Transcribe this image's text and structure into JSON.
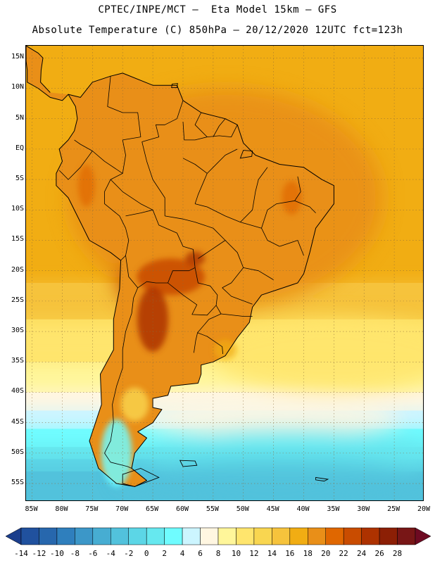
{
  "titles": {
    "line1": "CPTEC/INPE/MCT –  Eta Model 15km – GFS",
    "line2": "Absolute Temperature (C) 850hPa – 20/12/2020 12UTC fct=123h"
  },
  "map": {
    "lon_range": [
      -86,
      -20
    ],
    "lat_range": [
      -58,
      17
    ],
    "lat_ticks": [
      {
        "v": 15,
        "label": "15N"
      },
      {
        "v": 10,
        "label": "10N"
      },
      {
        "v": 5,
        "label": "5N"
      },
      {
        "v": 0,
        "label": "EQ"
      },
      {
        "v": -5,
        "label": "5S"
      },
      {
        "v": -10,
        "label": "10S"
      },
      {
        "v": -15,
        "label": "15S"
      },
      {
        "v": -20,
        "label": "20S"
      },
      {
        "v": -25,
        "label": "25S"
      },
      {
        "v": -30,
        "label": "30S"
      },
      {
        "v": -35,
        "label": "35S"
      },
      {
        "v": -40,
        "label": "40S"
      },
      {
        "v": -45,
        "label": "45S"
      },
      {
        "v": -50,
        "label": "50S"
      },
      {
        "v": -55,
        "label": "55S"
      }
    ],
    "lon_ticks": [
      {
        "v": -85,
        "label": "85W"
      },
      {
        "v": -80,
        "label": "80W"
      },
      {
        "v": -75,
        "label": "75W"
      },
      {
        "v": -70,
        "label": "70W"
      },
      {
        "v": -65,
        "label": "65W"
      },
      {
        "v": -60,
        "label": "60W"
      },
      {
        "v": -55,
        "label": "55W"
      },
      {
        "v": -50,
        "label": "50W"
      },
      {
        "v": -45,
        "label": "45W"
      },
      {
        "v": -40,
        "label": "40W"
      },
      {
        "v": -35,
        "label": "35W"
      },
      {
        "v": -30,
        "label": "30W"
      },
      {
        "v": -25,
        "label": "25W"
      },
      {
        "v": -20,
        "label": "20W"
      }
    ],
    "gridlines": "dotted",
    "continent_outline": [
      [
        -79,
        9
      ],
      [
        -77,
        8.5
      ],
      [
        -75,
        11
      ],
      [
        -72,
        12
      ],
      [
        -70,
        12.5
      ],
      [
        -65,
        10.5
      ],
      [
        -61,
        10.5
      ],
      [
        -60,
        8
      ],
      [
        -57,
        6
      ],
      [
        -53,
        5
      ],
      [
        -51,
        4
      ],
      [
        -50,
        1
      ],
      [
        -48,
        -1
      ],
      [
        -44,
        -2.5
      ],
      [
        -40,
        -3
      ],
      [
        -37,
        -5
      ],
      [
        -35,
        -6
      ],
      [
        -35,
        -9
      ],
      [
        -38,
        -13
      ],
      [
        -39,
        -17
      ],
      [
        -40,
        -20.5
      ],
      [
        -41,
        -22
      ],
      [
        -44,
        -23
      ],
      [
        -47,
        -24
      ],
      [
        -48.5,
        -26
      ],
      [
        -49,
        -28.5
      ],
      [
        -51,
        -31
      ],
      [
        -53,
        -34
      ],
      [
        -55,
        -35
      ],
      [
        -57,
        -35.5
      ],
      [
        -57,
        -37
      ],
      [
        -57.5,
        -38.5
      ],
      [
        -62,
        -39
      ],
      [
        -62.5,
        -40.5
      ],
      [
        -65,
        -41
      ],
      [
        -65,
        -42.5
      ],
      [
        -63.5,
        -42.8
      ],
      [
        -65,
        -45
      ],
      [
        -67.5,
        -46.5
      ],
      [
        -66,
        -47.5
      ],
      [
        -68,
        -50
      ],
      [
        -68.5,
        -52.5
      ],
      [
        -66,
        -54.5
      ],
      [
        -68,
        -55.5
      ],
      [
        -71,
        -55
      ],
      [
        -74,
        -52.5
      ],
      [
        -75.5,
        -48
      ],
      [
        -74.5,
        -45
      ],
      [
        -73.5,
        -42
      ],
      [
        -73.7,
        -37
      ],
      [
        -71.5,
        -33
      ],
      [
        -71.5,
        -28
      ],
      [
        -70.5,
        -23
      ],
      [
        -70.3,
        -18.3
      ],
      [
        -72,
        -17
      ],
      [
        -75.5,
        -15
      ],
      [
        -77,
        -12
      ],
      [
        -79,
        -8
      ],
      [
        -81,
        -6
      ],
      [
        -81,
        -4
      ],
      [
        -80,
        -2
      ],
      [
        -80.5,
        0
      ],
      [
        -79,
        1.5
      ],
      [
        -78,
        3
      ],
      [
        -77.5,
        5
      ],
      [
        -77.8,
        7
      ]
    ],
    "central_america_outline": [
      [
        -79,
        9
      ],
      [
        -80,
        8
      ],
      [
        -82,
        8.5
      ],
      [
        -84,
        10
      ],
      [
        -85.8,
        11
      ],
      [
        -85.8,
        13
      ],
      [
        -86,
        14.5
      ],
      [
        -86,
        17
      ],
      [
        -84,
        15.8
      ],
      [
        -83.2,
        15
      ],
      [
        -83.5,
        13
      ],
      [
        -83.6,
        11
      ],
      [
        -82,
        9.3
      ]
    ],
    "border_lines": [
      [
        [
          -72,
          12
        ],
        [
          -72.5,
          7
        ],
        [
          -70,
          6
        ],
        [
          -67.5,
          6
        ],
        [
          -67,
          2
        ],
        [
          -70,
          1.5
        ],
        [
          -69.5,
          -1
        ],
        [
          -70,
          -4
        ],
        [
          -73,
          -2
        ],
        [
          -75,
          -0.3
        ],
        [
          -77,
          0.8
        ],
        [
          -78,
          1.5
        ]
      ],
      [
        [
          -60,
          8
        ],
        [
          -61,
          5
        ],
        [
          -63,
          4
        ],
        [
          -64.5,
          4
        ],
        [
          -64,
          2
        ],
        [
          -66.8,
          1.2
        ]
      ],
      [
        [
          -57,
          6
        ],
        [
          -58,
          4
        ],
        [
          -56,
          2
        ]
      ],
      [
        [
          -53,
          5
        ],
        [
          -54,
          3.8
        ],
        [
          -55,
          2
        ]
      ],
      [
        [
          -51,
          4
        ],
        [
          -52,
          2
        ],
        [
          -54,
          2.2
        ],
        [
          -56,
          2
        ],
        [
          -58,
          1.5
        ],
        [
          -59.8,
          1.5
        ],
        [
          -60,
          4.5
        ]
      ],
      [
        [
          -75,
          -0.3
        ],
        [
          -77,
          -3
        ],
        [
          -79,
          -5
        ],
        [
          -80.5,
          -3.5
        ]
      ],
      [
        [
          -70,
          -4
        ],
        [
          -72,
          -5
        ],
        [
          -73,
          -7
        ],
        [
          -73,
          -9
        ],
        [
          -70.5,
          -11
        ],
        [
          -69.5,
          -13
        ],
        [
          -69,
          -15
        ],
        [
          -69.5,
          -17.5
        ],
        [
          -70.3,
          -18.3
        ]
      ],
      [
        [
          -69.5,
          -11
        ],
        [
          -67,
          -10.5
        ],
        [
          -65,
          -10
        ],
        [
          -64,
          -12.5
        ],
        [
          -61,
          -13.8
        ],
        [
          -60,
          -16
        ],
        [
          -58.3,
          -16.5
        ],
        [
          -58,
          -19.5
        ],
        [
          -59,
          -20
        ],
        [
          -61.7,
          -20
        ],
        [
          -62.5,
          -22
        ],
        [
          -64.5,
          -22
        ],
        [
          -66,
          -21.8
        ],
        [
          -67.5,
          -22.8
        ],
        [
          -69,
          -21
        ],
        [
          -69.5,
          -17.5
        ]
      ],
      [
        [
          -58,
          -19.5
        ],
        [
          -57.5,
          -22
        ],
        [
          -55.5,
          -22.5
        ],
        [
          -54.3,
          -24
        ],
        [
          -54.5,
          -25.7
        ],
        [
          -56,
          -27.3
        ],
        [
          -58.5,
          -27.2
        ],
        [
          -57.7,
          -25.6
        ],
        [
          -60,
          -24
        ],
        [
          -62.5,
          -22
        ]
      ],
      [
        [
          -67.5,
          -22.8
        ],
        [
          -68.2,
          -24.5
        ],
        [
          -68.5,
          -27
        ],
        [
          -69.5,
          -30
        ],
        [
          -70,
          -33
        ],
        [
          -70,
          -36
        ],
        [
          -71,
          -39
        ],
        [
          -71.7,
          -42
        ],
        [
          -71.5,
          -45
        ],
        [
          -72,
          -48
        ],
        [
          -73,
          -50
        ],
        [
          -72,
          -51.5
        ],
        [
          -69.2,
          -52.2
        ],
        [
          -68.5,
          -52.5
        ]
      ],
      [
        [
          -54.5,
          -25.7
        ],
        [
          -53.7,
          -27.1
        ],
        [
          -55.7,
          -28
        ],
        [
          -57.6,
          -30.2
        ],
        [
          -57.9,
          -31.5
        ],
        [
          -58.2,
          -33.5
        ]
      ],
      [
        [
          -57.6,
          -30.2
        ],
        [
          -56,
          -30.8
        ],
        [
          -53.5,
          -32.5
        ],
        [
          -53.4,
          -33.7
        ]
      ],
      [
        [
          -63,
          -11
        ],
        [
          -60,
          -11.5
        ],
        [
          -58,
          -12
        ],
        [
          -55,
          -13
        ],
        [
          -53,
          -15
        ],
        [
          -51,
          -17
        ],
        [
          -50,
          -19.5
        ],
        [
          -47.5,
          -20
        ],
        [
          -45,
          -21.5
        ]
      ],
      [
        [
          -58,
          -9
        ],
        [
          -56,
          -9.5
        ],
        [
          -53,
          -11
        ],
        [
          -50.5,
          -12
        ],
        [
          -47,
          -13
        ],
        [
          -46,
          -15
        ],
        [
          -44,
          -16
        ]
      ],
      [
        [
          -50.5,
          -12
        ],
        [
          -48.5,
          -10
        ],
        [
          -48,
          -7
        ],
        [
          -47.5,
          -5
        ],
        [
          -46,
          -3
        ]
      ],
      [
        [
          -47,
          -13
        ],
        [
          -46,
          -10
        ],
        [
          -44.5,
          -9
        ],
        [
          -41.5,
          -8.5
        ],
        [
          -40.5,
          -7
        ],
        [
          -41,
          -4.5
        ]
      ],
      [
        [
          -41.5,
          -8.5
        ],
        [
          -39,
          -9.5
        ],
        [
          -38,
          -10.5
        ]
      ],
      [
        [
          -44,
          -16
        ],
        [
          -41,
          -15
        ],
        [
          -40,
          -17.5
        ]
      ],
      [
        [
          -53,
          -15
        ],
        [
          -56,
          -17
        ],
        [
          -57.5,
          -18
        ]
      ],
      [
        [
          -50,
          -19.5
        ],
        [
          -52,
          -22
        ],
        [
          -53.5,
          -22.8
        ]
      ],
      [
        [
          -53.5,
          -22.8
        ],
        [
          -52,
          -24.2
        ],
        [
          -48.5,
          -25.5
        ]
      ],
      [
        [
          -53.7,
          -27.1
        ],
        [
          -50,
          -27.5
        ],
        [
          -48.5,
          -27.5
        ]
      ],
      [
        [
          -60,
          -1.5
        ],
        [
          -58,
          -2.5
        ],
        [
          -56,
          -4
        ],
        [
          -55,
          -3
        ],
        [
          -53,
          -1
        ],
        [
          -51,
          0
        ]
      ],
      [
        [
          -56,
          -4
        ],
        [
          -57.5,
          -7.5
        ],
        [
          -58,
          -9
        ]
      ],
      [
        [
          -66.8,
          1.2
        ],
        [
          -66,
          -2
        ],
        [
          -65,
          -5
        ],
        [
          -63,
          -8
        ],
        [
          -63,
          -11
        ]
      ],
      [
        [
          -72,
          -5
        ],
        [
          -70,
          -7
        ],
        [
          -67,
          -9
        ],
        [
          -65,
          -10
        ]
      ]
    ],
    "islands": [
      [
        [
          -67,
          -52.5
        ],
        [
          -64,
          -54
        ],
        [
          -68,
          -55.5
        ],
        [
          -70,
          -55
        ],
        [
          -70,
          -53.5
        ]
      ],
      [
        [
          -60.5,
          -51.2
        ],
        [
          -58,
          -51.3
        ],
        [
          -57.7,
          -52
        ],
        [
          -60,
          -52.2
        ]
      ],
      [
        [
          -38,
          -54
        ],
        [
          -36,
          -54.3
        ],
        [
          -36.6,
          -54.6
        ],
        [
          -38,
          -54.4
        ]
      ],
      [
        [
          -50,
          -0.2
        ],
        [
          -48.5,
          -0.3
        ],
        [
          -48.6,
          -1.2
        ],
        [
          -50.5,
          -1.5
        ]
      ],
      [
        [
          -61.8,
          10.7
        ],
        [
          -60.9,
          10.8
        ],
        [
          -61,
          10.1
        ],
        [
          -61.9,
          10.1
        ]
      ]
    ]
  },
  "colorbar": {
    "labels": [
      "-14",
      "-12",
      "-10",
      "-8",
      "-6",
      "-4",
      "-2",
      "0",
      "2",
      "4",
      "6",
      "8",
      "10",
      "12",
      "14",
      "16",
      "18",
      "20",
      "22",
      "24",
      "26",
      "28"
    ],
    "colors": [
      "#1b3e8c",
      "#20519e",
      "#2767ad",
      "#2f7fbd",
      "#3c97c8",
      "#47add2",
      "#52c2dc",
      "#5cd6e6",
      "#66e8ef",
      "#6ffcff",
      "#ccf5ff",
      "#fff6e1",
      "#fff69a",
      "#ffe56d",
      "#f9d650",
      "#f6c33c",
      "#f1ad13",
      "#e98f18",
      "#e06700",
      "#c94c00",
      "#ad3200",
      "#8c1f05",
      "#781616",
      "#6e0a22"
    ]
  },
  "chart_data": {
    "type": "heatmap",
    "title": "CPTEC/INPE/MCT –  Eta Model 15km – GFS",
    "subtitle": "Absolute Temperature (C) 850hPa – 20/12/2020 12UTC fct=123h",
    "x_range": [
      -86,
      -20
    ],
    "y_range": [
      -58,
      17
    ],
    "color_levels": [
      -14,
      -12,
      -10,
      -8,
      -6,
      -4,
      -2,
      0,
      2,
      4,
      6,
      8,
      10,
      12,
      14,
      16,
      18,
      20,
      22,
      24,
      26,
      28
    ],
    "regions": [
      {
        "lon": -53,
        "lat": -8,
        "rx": 26,
        "ry": 18,
        "value": 18
      },
      {
        "lon": -62,
        "lat": -22,
        "rx": 9,
        "ry": 5,
        "value": 22
      },
      {
        "lon": -64,
        "lat": -25,
        "rx": 4,
        "ry": 6,
        "value": 24
      },
      {
        "lon": -35,
        "lat": -34,
        "rx": 20,
        "ry": 6,
        "value": 10
      },
      {
        "lon": -46,
        "lat": -44,
        "rx": 22,
        "ry": 3,
        "value": 6
      },
      {
        "lon": -42,
        "lat": -50,
        "rx": 24,
        "ry": 4,
        "value": 0
      },
      {
        "lon": -45,
        "lat": -54,
        "rx": 26,
        "ry": 3,
        "value": -4
      }
    ]
  }
}
